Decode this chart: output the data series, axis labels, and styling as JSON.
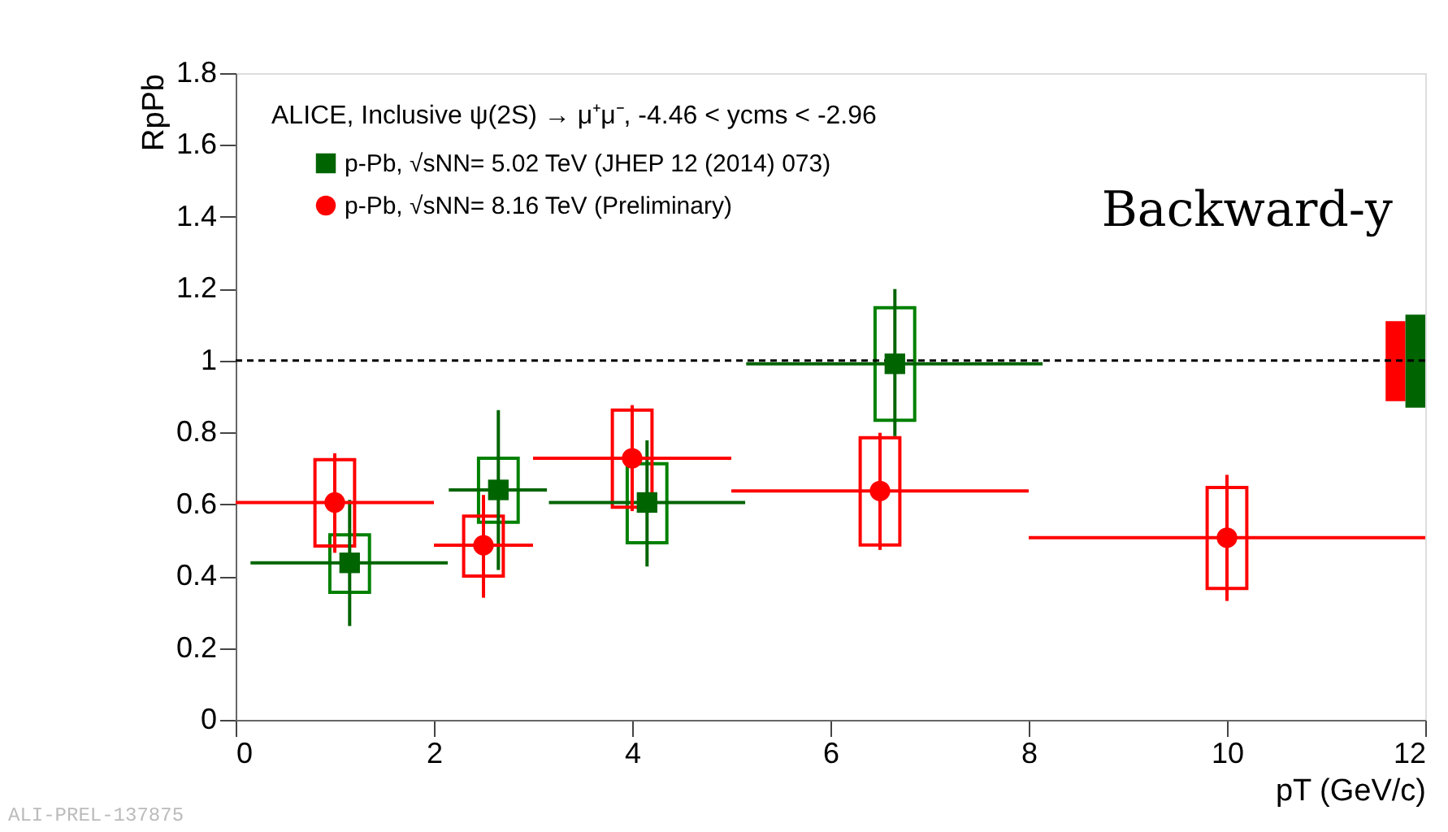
{
  "chart_data": {
    "type": "scatter",
    "xlabel": "pT (GeV/c)",
    "ylabel": "RpPb",
    "xlim": [
      0,
      12
    ],
    "xticks": [
      0,
      2,
      4,
      6,
      8,
      10,
      12
    ],
    "ylim": [
      0,
      1.8
    ],
    "yticks": [
      0,
      0.2,
      0.4,
      0.6,
      0.8,
      1,
      1.2,
      1.4,
      1.6,
      1.8
    ],
    "grid": false,
    "legend": "top left",
    "annotations": [
      "ALICE, Inclusive ψ(2S) → μ⁺μ⁻, -4.46 < ycms < -2.96",
      "Backward-y",
      "ALI-PREL-137875"
    ],
    "ref_lines": [
      {
        "axis": "y",
        "value": 1,
        "color": "#000000",
        "line_style": "dashed"
      }
    ],
    "series": [
      {
        "type": "bar",
        "line_style": "solid",
        "color": "#008000",
        "x": [
          1.15,
          2.65,
          4.15,
          6.65
        ],
        "base": [
          0.355,
          0.55,
          0.493,
          0.834
        ],
        "values": [
          0.16,
          0.178,
          0.22,
          0.313
        ]
      },
      {
        "type": "bar",
        "line_style": "solid",
        "color": "#ff0000",
        "x": [
          1,
          2.5,
          4,
          6.5,
          10
        ],
        "base": [
          0.484,
          0.4,
          0.592,
          0.487,
          0.366
        ],
        "values": [
          0.24,
          0.167,
          0.27,
          0.298,
          0.281
        ]
      },
      {
        "type": "bar",
        "color": "#ff0000",
        "x": [
          11.7
        ],
        "base": [
          0.887
        ],
        "values": [
          0.223
        ]
      },
      {
        "type": "bar",
        "color": "#006400",
        "x": [
          11.9
        ],
        "base": [
          0.869
        ],
        "values": [
          0.259
        ]
      },
      {
        "name": "p-Pb, √sNN= 5.02 TeV (JHEP 12 (2014) 073)",
        "color": "#006400",
        "marker": "square",
        "x": [
          1.15,
          2.65,
          4.15,
          6.65
        ],
        "values": [
          0.437,
          0.64,
          0.605,
          0.991
        ],
        "errors": [
          [
            0.261,
            0.612
          ],
          [
            0.417,
            0.862
          ],
          [
            0.427,
            0.778
          ],
          [
            0.79,
            1.199
          ]
        ],
        "xerrors": [
          [
            0.15,
            2.14
          ],
          [
            2.15,
            3.14
          ],
          [
            3.16,
            5.14
          ],
          [
            5.15,
            8.14
          ]
        ]
      },
      {
        "name": "p-Pb, √sNN= 8.16 TeV (Preliminary)",
        "color": "#ff0000",
        "marker": "circle",
        "x": [
          1,
          2.5,
          4,
          6.5,
          10
        ],
        "values": [
          0.605,
          0.486,
          0.728,
          0.637,
          0.507
        ],
        "errors": [
          [
            0.465,
            0.742
          ],
          [
            0.34,
            0.626
          ],
          [
            0.581,
            0.876
          ],
          [
            0.473,
            0.799
          ],
          [
            0.331,
            0.682
          ]
        ],
        "xerrors": [
          [
            0,
            2
          ],
          [
            2,
            3
          ],
          [
            3,
            5
          ],
          [
            5,
            8
          ],
          [
            8,
            12
          ]
        ]
      }
    ]
  }
}
